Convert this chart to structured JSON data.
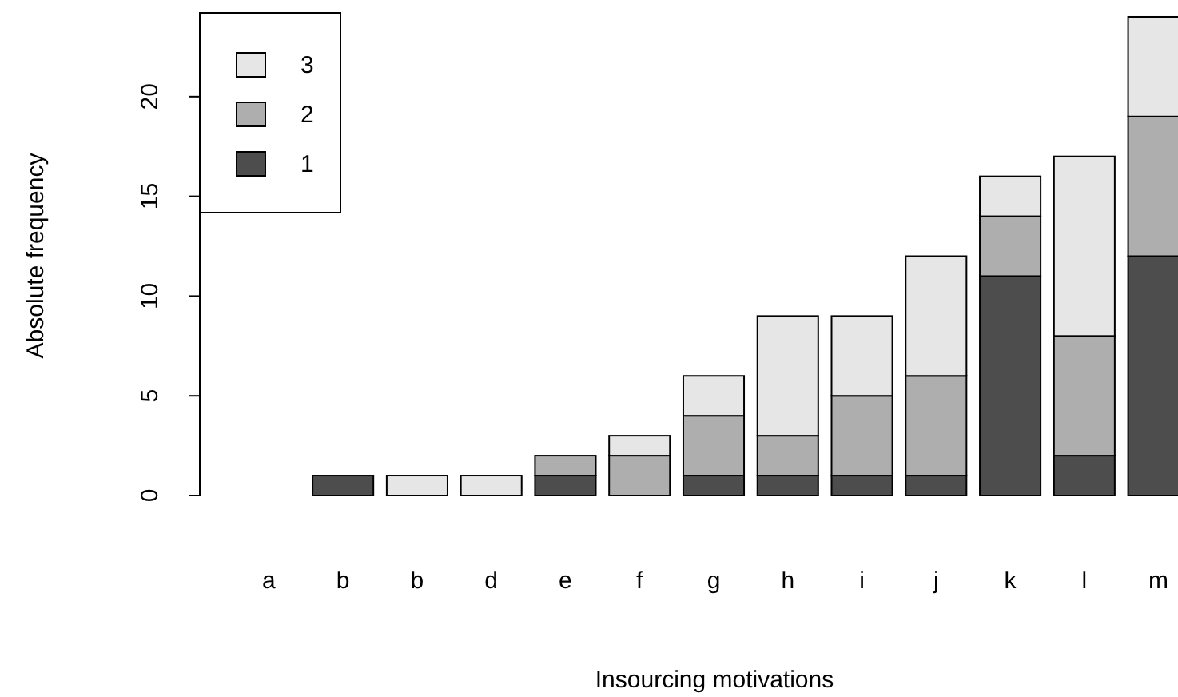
{
  "chart_data": {
    "type": "bar",
    "xlabel": "Insourcing motivations",
    "ylabel": "Absolute frequency",
    "categories": [
      "a",
      "b",
      "b",
      "d",
      "e",
      "f",
      "g",
      "h",
      "i",
      "j",
      "k",
      "l",
      "m"
    ],
    "stacked": true,
    "series": [
      {
        "name": "1",
        "color": "#4d4d4d",
        "values": [
          0,
          1,
          0,
          0,
          1,
          0,
          1,
          1,
          1,
          1,
          11,
          2,
          12
        ]
      },
      {
        "name": "2",
        "color": "#aeaeae",
        "values": [
          0,
          0,
          0,
          0,
          1,
          2,
          3,
          2,
          4,
          5,
          3,
          6,
          7
        ]
      },
      {
        "name": "3",
        "color": "#e6e6e6",
        "values": [
          0,
          0,
          1,
          1,
          0,
          1,
          2,
          6,
          4,
          6,
          2,
          9,
          5
        ]
      }
    ],
    "ylim": [
      0,
      24.2
    ],
    "yticks": [
      0,
      5,
      10,
      15,
      20
    ],
    "legend": "top left",
    "grid": false
  }
}
